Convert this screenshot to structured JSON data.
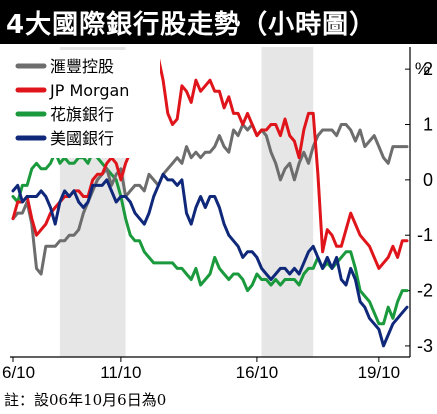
{
  "header": {
    "title": "4大國際銀行股走勢（小時圖）"
  },
  "footnote": "註：設06年10月6日為0",
  "chart_data": {
    "type": "line",
    "title": "4大國際銀行股走勢（小時圖）",
    "unit": "%",
    "xlabel": "",
    "ylabel": "",
    "x_tick_labels": [
      "6/10",
      "11/10",
      "16/10",
      "19/10"
    ],
    "x_tick_positions": [
      0,
      23,
      52,
      78
    ],
    "ylim": [
      -3.2,
      2.4
    ],
    "yticks": [
      2,
      1,
      0,
      -1,
      -2,
      -3
    ],
    "shaded_bands": [
      [
        10,
        24
      ],
      [
        53,
        64
      ]
    ],
    "legend_position": "top-left",
    "series": [
      {
        "name": "滙豐控股",
        "color": "#6d6d6d",
        "values": [
          -0.7,
          -0.6,
          -0.6,
          -0.4,
          -0.8,
          -1.6,
          -1.7,
          -1.2,
          -1.2,
          -1.2,
          -1.1,
          -1.1,
          -1.0,
          -1.0,
          -0.9,
          -0.6,
          -0.4,
          -0.2,
          0.0,
          0.1,
          0.2,
          -0.1,
          0.1,
          0.2,
          -0.3,
          -0.2,
          -0.1,
          -0.1,
          -0.2,
          0.1,
          0.0,
          -0.1,
          0.1,
          0.2,
          0.3,
          0.4,
          0.3,
          0.6,
          0.4,
          0.5,
          0.4,
          0.5,
          0.5,
          0.6,
          0.8,
          0.6,
          0.5,
          0.9,
          0.8,
          1.0,
          0.9,
          1.0,
          0.8,
          0.9,
          0.8,
          0.5,
          0.3,
          0.0,
          0.2,
          0.3,
          0.0,
          0.3,
          0.5,
          0.3,
          0.6,
          0.8,
          0.9,
          0.9,
          0.9,
          0.8,
          1.0,
          1.0,
          0.9,
          0.7,
          0.9,
          0.6,
          0.7,
          0.8,
          0.6,
          0.4,
          0.3,
          0.6,
          0.6,
          0.6,
          0.6
        ]
      },
      {
        "name": "JP Morgan",
        "color": "#e0151b",
        "values": [
          -0.7,
          -0.4,
          -0.4,
          -0.3,
          -0.7,
          -1.0,
          -0.9,
          -0.8,
          -0.6,
          -0.5,
          -0.4,
          -0.3,
          -0.3,
          -0.2,
          -0.2,
          -0.3,
          -0.3,
          0.0,
          0.1,
          0.1,
          0.3,
          0.4,
          0.3,
          0.0,
          0.3,
          0.5,
          0.8,
          1.0,
          1.2,
          1.5,
          2.0,
          2.2,
          1.8,
          1.2,
          1.0,
          1.1,
          1.7,
          1.6,
          1.4,
          1.8,
          1.6,
          1.7,
          1.8,
          1.6,
          1.6,
          1.3,
          1.5,
          1.2,
          1.2,
          1.0,
          1.2,
          1.0,
          0.8,
          0.9,
          0.9,
          1.0,
          1.0,
          0.8,
          1.1,
          0.8,
          0.7,
          0.4,
          0.9,
          1.2,
          1.2,
          0.1,
          -1.3,
          -0.9,
          -1.0,
          -1.2,
          -1.2,
          -0.9,
          -0.6,
          -0.8,
          -1.0,
          -1.1,
          -1.2,
          -1.4,
          -1.6,
          -1.5,
          -1.4,
          -1.2,
          -1.4,
          -1.1,
          -1.1
        ]
      },
      {
        "name": "花旗銀行",
        "color": "#1a9a3c",
        "values": [
          -0.3,
          -0.4,
          -0.1,
          -0.1,
          0.2,
          0.3,
          0.2,
          0.2,
          0.3,
          0.5,
          0.3,
          0.4,
          0.3,
          0.3,
          0.4,
          0.4,
          0.3,
          0.5,
          0.4,
          0.3,
          0.2,
          0.1,
          0.0,
          -0.3,
          -0.7,
          -1.0,
          -1.1,
          -1.1,
          -1.3,
          -1.4,
          -1.5,
          -1.5,
          -1.5,
          -1.5,
          -1.5,
          -1.6,
          -1.6,
          -1.7,
          -1.8,
          -1.6,
          -1.9,
          -1.8,
          -1.7,
          -1.4,
          -1.6,
          -1.7,
          -1.8,
          -1.7,
          -1.7,
          -1.8,
          -2.0,
          -1.9,
          -1.7,
          -1.8,
          -1.8,
          -1.9,
          -1.8,
          -1.9,
          -1.8,
          -1.8,
          -1.8,
          -1.9,
          -1.7,
          -1.6,
          -1.6,
          -1.4,
          -1.6,
          -1.5,
          -1.6,
          -1.5,
          -1.4,
          -1.3,
          -1.3,
          -1.6,
          -2.0,
          -2.1,
          -2.2,
          -2.4,
          -2.6,
          -2.6,
          -2.3,
          -2.5,
          -2.2,
          -2.0,
          -2.0
        ]
      },
      {
        "name": "美國銀行",
        "color": "#10287a",
        "values": [
          -0.2,
          -0.1,
          -0.4,
          -0.3,
          -0.3,
          -0.3,
          -0.2,
          -0.3,
          -0.5,
          -0.8,
          -0.4,
          -0.2,
          -0.3,
          -0.2,
          -0.4,
          -0.5,
          -0.4,
          -0.1,
          -0.1,
          -0.1,
          0.0,
          -0.2,
          -0.4,
          -0.3,
          -0.3,
          -0.4,
          -0.6,
          -0.7,
          -0.8,
          -0.6,
          -0.3,
          -0.1,
          0.1,
          0.0,
          0.0,
          -0.1,
          0.0,
          -0.6,
          -0.8,
          -0.5,
          -0.3,
          -0.5,
          -0.3,
          -0.3,
          -0.5,
          -0.8,
          -1.0,
          -1.1,
          -1.2,
          -1.4,
          -1.3,
          -1.3,
          -1.4,
          -1.6,
          -1.7,
          -1.8,
          -1.7,
          -1.6,
          -1.6,
          -1.7,
          -1.6,
          -1.7,
          -1.5,
          -1.3,
          -1.2,
          -1.4,
          -1.6,
          -1.4,
          -1.6,
          -1.4,
          -1.8,
          -1.9,
          -1.6,
          -1.8,
          -2.2,
          -2.3,
          -2.5,
          -2.6,
          -2.7,
          -3.0,
          -2.8,
          -2.6,
          -2.5,
          -2.4,
          -2.3
        ]
      }
    ]
  }
}
